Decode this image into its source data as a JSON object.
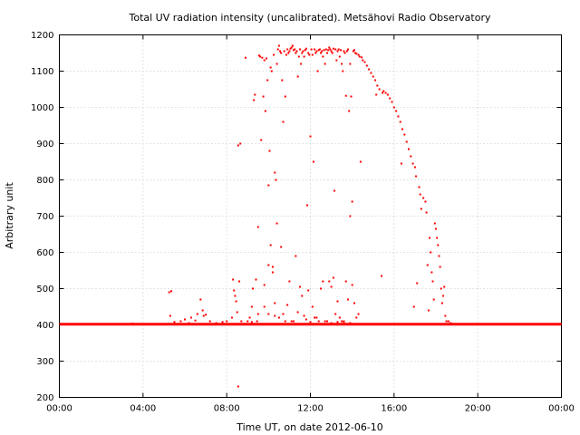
{
  "chart_data": {
    "type": "scatter",
    "title": "Total UV radiation intensity (uncalibrated). Metsähovi Radio Observatory",
    "xlabel": "Time UT, on date 2012-06-10",
    "ylabel": "Arbitrary unit",
    "xlim_hours": [
      0,
      24
    ],
    "ylim": [
      200,
      1200
    ],
    "x_ticks": [
      {
        "hours": 0,
        "label": "00:00"
      },
      {
        "hours": 4,
        "label": "04:00"
      },
      {
        "hours": 8,
        "label": "08:00"
      },
      {
        "hours": 12,
        "label": "12:00"
      },
      {
        "hours": 16,
        "label": "16:00"
      },
      {
        "hours": 20,
        "label": "20:00"
      },
      {
        "hours": 24,
        "label": "00:00"
      }
    ],
    "y_ticks": [
      200,
      300,
      400,
      500,
      600,
      700,
      800,
      900,
      1000,
      1100,
      1200
    ],
    "grid": true,
    "series_color": "#ff0000",
    "baseline": {
      "value": 402,
      "x_start_hours": 0,
      "x_end_hours": 24
    },
    "points": [
      [
        3.5,
        404
      ],
      [
        5.25,
        490
      ],
      [
        5.35,
        493
      ],
      [
        5.3,
        425
      ],
      [
        5.5,
        408
      ],
      [
        5.8,
        410
      ],
      [
        6.0,
        415
      ],
      [
        6.2,
        405
      ],
      [
        6.3,
        420
      ],
      [
        6.5,
        412
      ],
      [
        6.6,
        430
      ],
      [
        6.75,
        470
      ],
      [
        6.85,
        440
      ],
      [
        6.9,
        425
      ],
      [
        7.0,
        428
      ],
      [
        7.2,
        410
      ],
      [
        7.5,
        405
      ],
      [
        7.8,
        408
      ],
      [
        8.0,
        410
      ],
      [
        8.25,
        420
      ],
      [
        8.3,
        525
      ],
      [
        8.35,
        495
      ],
      [
        8.4,
        480
      ],
      [
        8.45,
        465
      ],
      [
        8.5,
        435
      ],
      [
        8.55,
        230
      ],
      [
        8.55,
        895
      ],
      [
        8.65,
        900
      ],
      [
        8.6,
        520
      ],
      [
        8.7,
        410
      ],
      [
        8.9,
        1137
      ],
      [
        9.0,
        410
      ],
      [
        9.1,
        420
      ],
      [
        9.2,
        408
      ],
      [
        9.25,
        500
      ],
      [
        9.3,
        1020
      ],
      [
        9.35,
        1035
      ],
      [
        9.4,
        525
      ],
      [
        9.45,
        410
      ],
      [
        9.5,
        670
      ],
      [
        9.55,
        1143
      ],
      [
        9.6,
        1140
      ],
      [
        9.65,
        910
      ],
      [
        9.7,
        1137
      ],
      [
        9.75,
        1030
      ],
      [
        9.8,
        1130
      ],
      [
        9.85,
        990
      ],
      [
        9.9,
        1135
      ],
      [
        9.95,
        1075
      ],
      [
        10.0,
        785
      ],
      [
        10.05,
        880
      ],
      [
        10.1,
        1110
      ],
      [
        10.15,
        1100
      ],
      [
        10.2,
        560
      ],
      [
        10.25,
        1145
      ],
      [
        10.3,
        820
      ],
      [
        10.35,
        800
      ],
      [
        10.4,
        1120
      ],
      [
        10.45,
        1160
      ],
      [
        10.5,
        1170
      ],
      [
        10.55,
        1155
      ],
      [
        10.6,
        1150
      ],
      [
        10.65,
        1075
      ],
      [
        10.7,
        960
      ],
      [
        10.75,
        1155
      ],
      [
        10.8,
        1030
      ],
      [
        10.85,
        1145
      ],
      [
        10.9,
        1160
      ],
      [
        10.95,
        1150
      ],
      [
        11.0,
        1155
      ],
      [
        11.05,
        1162
      ],
      [
        11.1,
        1165
      ],
      [
        11.15,
        1170
      ],
      [
        11.2,
        1158
      ],
      [
        11.25,
        1160
      ],
      [
        11.3,
        1150
      ],
      [
        11.35,
        1155
      ],
      [
        11.4,
        1085
      ],
      [
        11.45,
        1140
      ],
      [
        11.5,
        1160
      ],
      [
        11.55,
        1120
      ],
      [
        11.6,
        1150
      ],
      [
        11.65,
        1155
      ],
      [
        11.7,
        1140
      ],
      [
        11.75,
        1158
      ],
      [
        11.8,
        1162
      ],
      [
        11.85,
        730
      ],
      [
        11.9,
        1150
      ],
      [
        11.95,
        1145
      ],
      [
        12.0,
        920
      ],
      [
        12.05,
        1160
      ],
      [
        12.1,
        1145
      ],
      [
        12.15,
        850
      ],
      [
        12.2,
        1160
      ],
      [
        12.25,
        1150
      ],
      [
        12.3,
        1155
      ],
      [
        12.35,
        1100
      ],
      [
        12.4,
        1158
      ],
      [
        12.45,
        1160
      ],
      [
        12.5,
        1150
      ],
      [
        12.55,
        1155
      ],
      [
        12.6,
        1140
      ],
      [
        12.65,
        1158
      ],
      [
        12.7,
        1120
      ],
      [
        12.75,
        1160
      ],
      [
        12.8,
        1150
      ],
      [
        12.85,
        1158
      ],
      [
        12.9,
        1165
      ],
      [
        12.95,
        1160
      ],
      [
        13.0,
        1155
      ],
      [
        13.05,
        1150
      ],
      [
        13.1,
        1162
      ],
      [
        13.15,
        770
      ],
      [
        13.2,
        1160
      ],
      [
        13.25,
        1130
      ],
      [
        13.3,
        1155
      ],
      [
        13.35,
        1160
      ],
      [
        13.4,
        1140
      ],
      [
        13.45,
        1158
      ],
      [
        13.5,
        1120
      ],
      [
        13.55,
        1100
      ],
      [
        13.6,
        1155
      ],
      [
        13.65,
        1150
      ],
      [
        13.7,
        1032
      ],
      [
        13.75,
        1155
      ],
      [
        13.8,
        1160
      ],
      [
        13.85,
        990
      ],
      [
        13.9,
        1120
      ],
      [
        13.95,
        1030
      ],
      [
        14.0,
        740
      ],
      [
        14.05,
        1155
      ],
      [
        14.1,
        1158
      ],
      [
        14.15,
        1150
      ],
      [
        14.2,
        1148
      ],
      [
        14.3,
        1145
      ],
      [
        14.35,
        1140
      ],
      [
        14.4,
        850
      ],
      [
        14.45,
        1138
      ],
      [
        14.5,
        1130
      ],
      [
        14.6,
        1125
      ],
      [
        14.7,
        1115
      ],
      [
        14.8,
        1105
      ],
      [
        14.9,
        1095
      ],
      [
        15.0,
        1085
      ],
      [
        15.1,
        1075
      ],
      [
        15.15,
        1035
      ],
      [
        15.2,
        1060
      ],
      [
        15.3,
        1050
      ],
      [
        15.4,
        535
      ],
      [
        15.45,
        1040
      ],
      [
        15.5,
        1045
      ],
      [
        15.6,
        1040
      ],
      [
        15.7,
        1035
      ],
      [
        15.8,
        1025
      ],
      [
        15.9,
        1015
      ],
      [
        16.0,
        1000
      ],
      [
        16.1,
        990
      ],
      [
        16.2,
        975
      ],
      [
        16.3,
        960
      ],
      [
        16.35,
        845
      ],
      [
        16.4,
        940
      ],
      [
        16.5,
        925
      ],
      [
        16.6,
        905
      ],
      [
        16.7,
        885
      ],
      [
        16.8,
        865
      ],
      [
        16.9,
        845
      ],
      [
        16.95,
        450
      ],
      [
        17.0,
        835
      ],
      [
        17.05,
        810
      ],
      [
        17.1,
        515
      ],
      [
        17.2,
        780
      ],
      [
        17.25,
        760
      ],
      [
        17.3,
        720
      ],
      [
        17.4,
        750
      ],
      [
        17.5,
        740
      ],
      [
        17.55,
        710
      ],
      [
        17.6,
        565
      ],
      [
        17.65,
        440
      ],
      [
        17.7,
        640
      ],
      [
        17.75,
        600
      ],
      [
        17.8,
        545
      ],
      [
        17.85,
        520
      ],
      [
        17.9,
        470
      ],
      [
        17.95,
        680
      ],
      [
        18.0,
        665
      ],
      [
        18.05,
        640
      ],
      [
        18.1,
        620
      ],
      [
        18.15,
        590
      ],
      [
        18.2,
        560
      ],
      [
        18.25,
        500
      ],
      [
        18.3,
        460
      ],
      [
        18.35,
        480
      ],
      [
        18.4,
        505
      ],
      [
        18.45,
        425
      ],
      [
        18.5,
        410
      ],
      [
        18.6,
        410
      ],
      [
        18.7,
        405
      ],
      [
        18.8,
        403
      ],
      [
        9.8,
        450
      ],
      [
        10.1,
        620
      ],
      [
        10.3,
        460
      ],
      [
        10.5,
        420
      ],
      [
        10.8,
        410
      ],
      [
        11.0,
        520
      ],
      [
        11.2,
        410
      ],
      [
        11.5,
        505
      ],
      [
        11.8,
        415
      ],
      [
        12.1,
        450
      ],
      [
        12.3,
        420
      ],
      [
        12.6,
        520
      ],
      [
        12.8,
        410
      ],
      [
        13.0,
        505
      ],
      [
        13.2,
        430
      ],
      [
        13.4,
        420
      ],
      [
        13.6,
        410
      ],
      [
        13.8,
        470
      ],
      [
        14.0,
        510
      ],
      [
        14.2,
        420
      ],
      [
        10.0,
        565
      ],
      [
        10.2,
        545
      ],
      [
        10.4,
        680
      ],
      [
        10.6,
        615
      ],
      [
        10.9,
        455
      ],
      [
        11.3,
        590
      ],
      [
        11.6,
        480
      ],
      [
        11.9,
        495
      ],
      [
        12.2,
        420
      ],
      [
        12.5,
        500
      ],
      [
        12.9,
        520
      ],
      [
        13.1,
        530
      ],
      [
        13.3,
        465
      ],
      [
        13.5,
        410
      ],
      [
        13.7,
        520
      ],
      [
        13.9,
        700
      ],
      [
        14.1,
        460
      ],
      [
        14.3,
        430
      ],
      [
        9.2,
        450
      ],
      [
        9.5,
        430
      ],
      [
        9.8,
        510
      ],
      [
        10.0,
        430
      ],
      [
        10.3,
        425
      ],
      [
        10.7,
        430
      ],
      [
        11.1,
        410
      ],
      [
        11.4,
        435
      ],
      [
        11.7,
        425
      ],
      [
        12.0,
        408
      ],
      [
        12.4,
        410
      ],
      [
        12.7,
        410
      ],
      [
        13.0,
        405
      ],
      [
        13.3,
        408
      ],
      [
        13.6,
        408
      ],
      [
        13.9,
        405
      ]
    ]
  }
}
